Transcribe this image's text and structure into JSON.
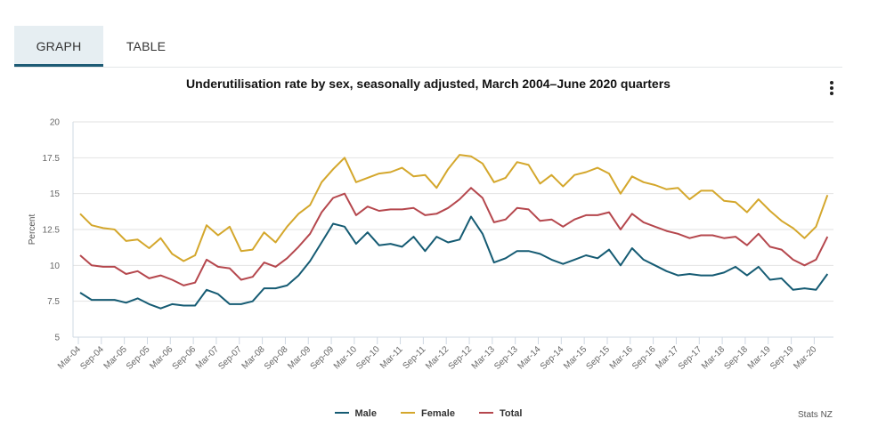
{
  "tabs": [
    {
      "label": "GRAPH",
      "active": true
    },
    {
      "label": "TABLE",
      "active": false
    }
  ],
  "menu_icon": "kebab-menu-icon",
  "source": "Stats NZ",
  "chart_data": {
    "type": "line",
    "title": "Underutilisation rate by sex, seasonally adjusted, March 2004–June 2020 quarters",
    "xlabel": "",
    "ylabel": "Percent",
    "ylim": [
      5,
      20
    ],
    "yticks": [
      5,
      7.5,
      10,
      12.5,
      15,
      17.5,
      20
    ],
    "ytick_labels": [
      "5",
      "7.5",
      "10",
      "12.5",
      "15",
      "17.5",
      "20"
    ],
    "grid": true,
    "legend_position": "bottom",
    "x": [
      "Mar-04",
      "Jun-04",
      "Sep-04",
      "Dec-04",
      "Mar-05",
      "Jun-05",
      "Sep-05",
      "Dec-05",
      "Mar-06",
      "Jun-06",
      "Sep-06",
      "Dec-06",
      "Mar-07",
      "Jun-07",
      "Sep-07",
      "Dec-07",
      "Mar-08",
      "Jun-08",
      "Sep-08",
      "Dec-08",
      "Mar-09",
      "Jun-09",
      "Sep-09",
      "Dec-09",
      "Mar-10",
      "Jun-10",
      "Sep-10",
      "Dec-10",
      "Mar-11",
      "Jun-11",
      "Sep-11",
      "Dec-11",
      "Mar-12",
      "Jun-12",
      "Sep-12",
      "Dec-12",
      "Mar-13",
      "Jun-13",
      "Sep-13",
      "Dec-13",
      "Mar-14",
      "Jun-14",
      "Sep-14",
      "Dec-14",
      "Mar-15",
      "Jun-15",
      "Sep-15",
      "Dec-15",
      "Mar-16",
      "Jun-16",
      "Sep-16",
      "Dec-16",
      "Mar-17",
      "Jun-17",
      "Sep-17",
      "Dec-17",
      "Mar-18",
      "Jun-18",
      "Sep-18",
      "Dec-18",
      "Mar-19",
      "Jun-19",
      "Sep-19",
      "Dec-19",
      "Mar-20",
      "Jun-20"
    ],
    "xtick_labels": [
      "Mar-04",
      "Sep-04",
      "Mar-05",
      "Sep-05",
      "Mar-06",
      "Sep-06",
      "Mar-07",
      "Sep-07",
      "Mar-08",
      "Sep-08",
      "Mar-09",
      "Sep-09",
      "Mar-10",
      "Sep-10",
      "Mar-11",
      "Sep-11",
      "Mar-12",
      "Sep-12",
      "Mar-13",
      "Sep-13",
      "Mar-14",
      "Sep-14",
      "Mar-15",
      "Sep-15",
      "Mar-16",
      "Sep-16",
      "Mar-17",
      "Sep-17",
      "Mar-18",
      "Sep-18",
      "Mar-19",
      "Sep-19",
      "Mar-20"
    ],
    "series": [
      {
        "name": "Male",
        "color": "#155b73",
        "values": [
          8.1,
          7.6,
          7.6,
          7.6,
          7.4,
          7.7,
          7.3,
          7.0,
          7.3,
          7.2,
          7.2,
          8.3,
          8.0,
          7.3,
          7.3,
          7.5,
          8.4,
          8.4,
          8.6,
          9.3,
          10.3,
          11.6,
          12.9,
          12.7,
          11.5,
          12.3,
          11.4,
          11.5,
          11.3,
          12.0,
          11.0,
          12.0,
          11.6,
          11.8,
          13.4,
          12.2,
          10.2,
          10.5,
          11.0,
          11.0,
          10.8,
          10.4,
          10.1,
          10.4,
          10.7,
          10.5,
          11.1,
          10.0,
          11.2,
          10.4,
          10.0,
          9.6,
          9.3,
          9.4,
          9.3,
          9.3,
          9.5,
          9.9,
          9.3,
          9.9,
          9.0,
          9.1,
          8.3,
          8.4,
          8.3,
          9.4
        ]
      },
      {
        "name": "Female",
        "color": "#d4a72c",
        "values": [
          13.6,
          12.8,
          12.6,
          12.5,
          11.7,
          11.8,
          11.2,
          11.9,
          10.8,
          10.3,
          10.7,
          12.8,
          12.1,
          12.7,
          11.0,
          11.1,
          12.3,
          11.6,
          12.7,
          13.6,
          14.2,
          15.8,
          16.7,
          17.5,
          15.8,
          16.1,
          16.4,
          16.5,
          16.8,
          16.2,
          16.3,
          15.4,
          16.7,
          17.7,
          17.6,
          17.1,
          15.8,
          16.1,
          17.2,
          17.0,
          15.7,
          16.3,
          15.5,
          16.3,
          16.5,
          16.8,
          16.4,
          15.0,
          16.2,
          15.8,
          15.6,
          15.3,
          15.4,
          14.6,
          15.2,
          15.2,
          14.5,
          14.4,
          13.7,
          14.6,
          13.8,
          13.1,
          12.6,
          11.9,
          12.7,
          14.9
        ]
      },
      {
        "name": "Total",
        "color": "#b5474d",
        "values": [
          10.7,
          10.0,
          9.9,
          9.9,
          9.4,
          9.6,
          9.1,
          9.3,
          9.0,
          8.6,
          8.8,
          10.4,
          9.9,
          9.8,
          9.0,
          9.2,
          10.2,
          9.9,
          10.5,
          11.3,
          12.2,
          13.7,
          14.7,
          15.0,
          13.5,
          14.1,
          13.8,
          13.9,
          13.9,
          14.0,
          13.5,
          13.6,
          14.0,
          14.6,
          15.4,
          14.7,
          13.0,
          13.2,
          14.0,
          13.9,
          13.1,
          13.2,
          12.7,
          13.2,
          13.5,
          13.5,
          13.7,
          12.5,
          13.6,
          13.0,
          12.7,
          12.4,
          12.2,
          11.9,
          12.1,
          12.1,
          11.9,
          12.0,
          11.4,
          12.2,
          11.3,
          11.1,
          10.4,
          10.0,
          10.4,
          12.0
        ]
      }
    ]
  }
}
